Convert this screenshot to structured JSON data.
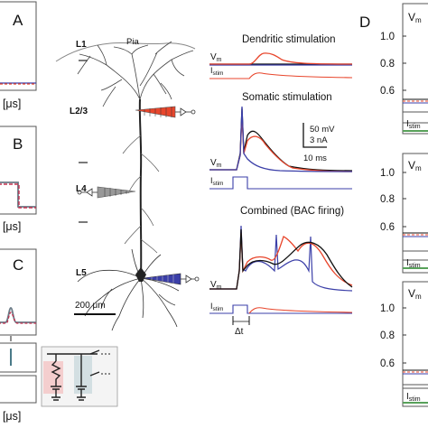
{
  "panels": {
    "a": {
      "letter": "A",
      "axis": "t [μs]"
    },
    "b": {
      "letter": "B",
      "axis": "t [μs]"
    },
    "c": {
      "letter": "C",
      "axis": "t [μs]"
    },
    "d": {
      "letter": "D"
    }
  },
  "neuron": {
    "pia": "Pia",
    "layers": [
      "L1",
      "L2/3",
      "L4",
      "L5"
    ],
    "scalebar": "200 μm"
  },
  "traces": {
    "dendritic_title": "Dendritic stimulation",
    "somatic_title": "Somatic stimulation",
    "combined_title": "Combined (BAC firing)",
    "vm_label": "V",
    "vm_sub": "m",
    "istim_label": "I",
    "istim_sub": "stim",
    "scale_mv": "50  mV",
    "scale_na": "3 nA",
    "scale_ms": "10 ms",
    "delta_t": "Δt"
  },
  "right_column": {
    "vm_label": "V",
    "vm_sub": "m",
    "istim_label": "I",
    "istim_sub": "stim",
    "ticks": [
      "1.0",
      "0.8",
      "0.6"
    ]
  },
  "colors": {
    "red": "#e8462c",
    "blue": "#3b3fa8",
    "black": "#111111",
    "green": "#58a15a"
  }
}
